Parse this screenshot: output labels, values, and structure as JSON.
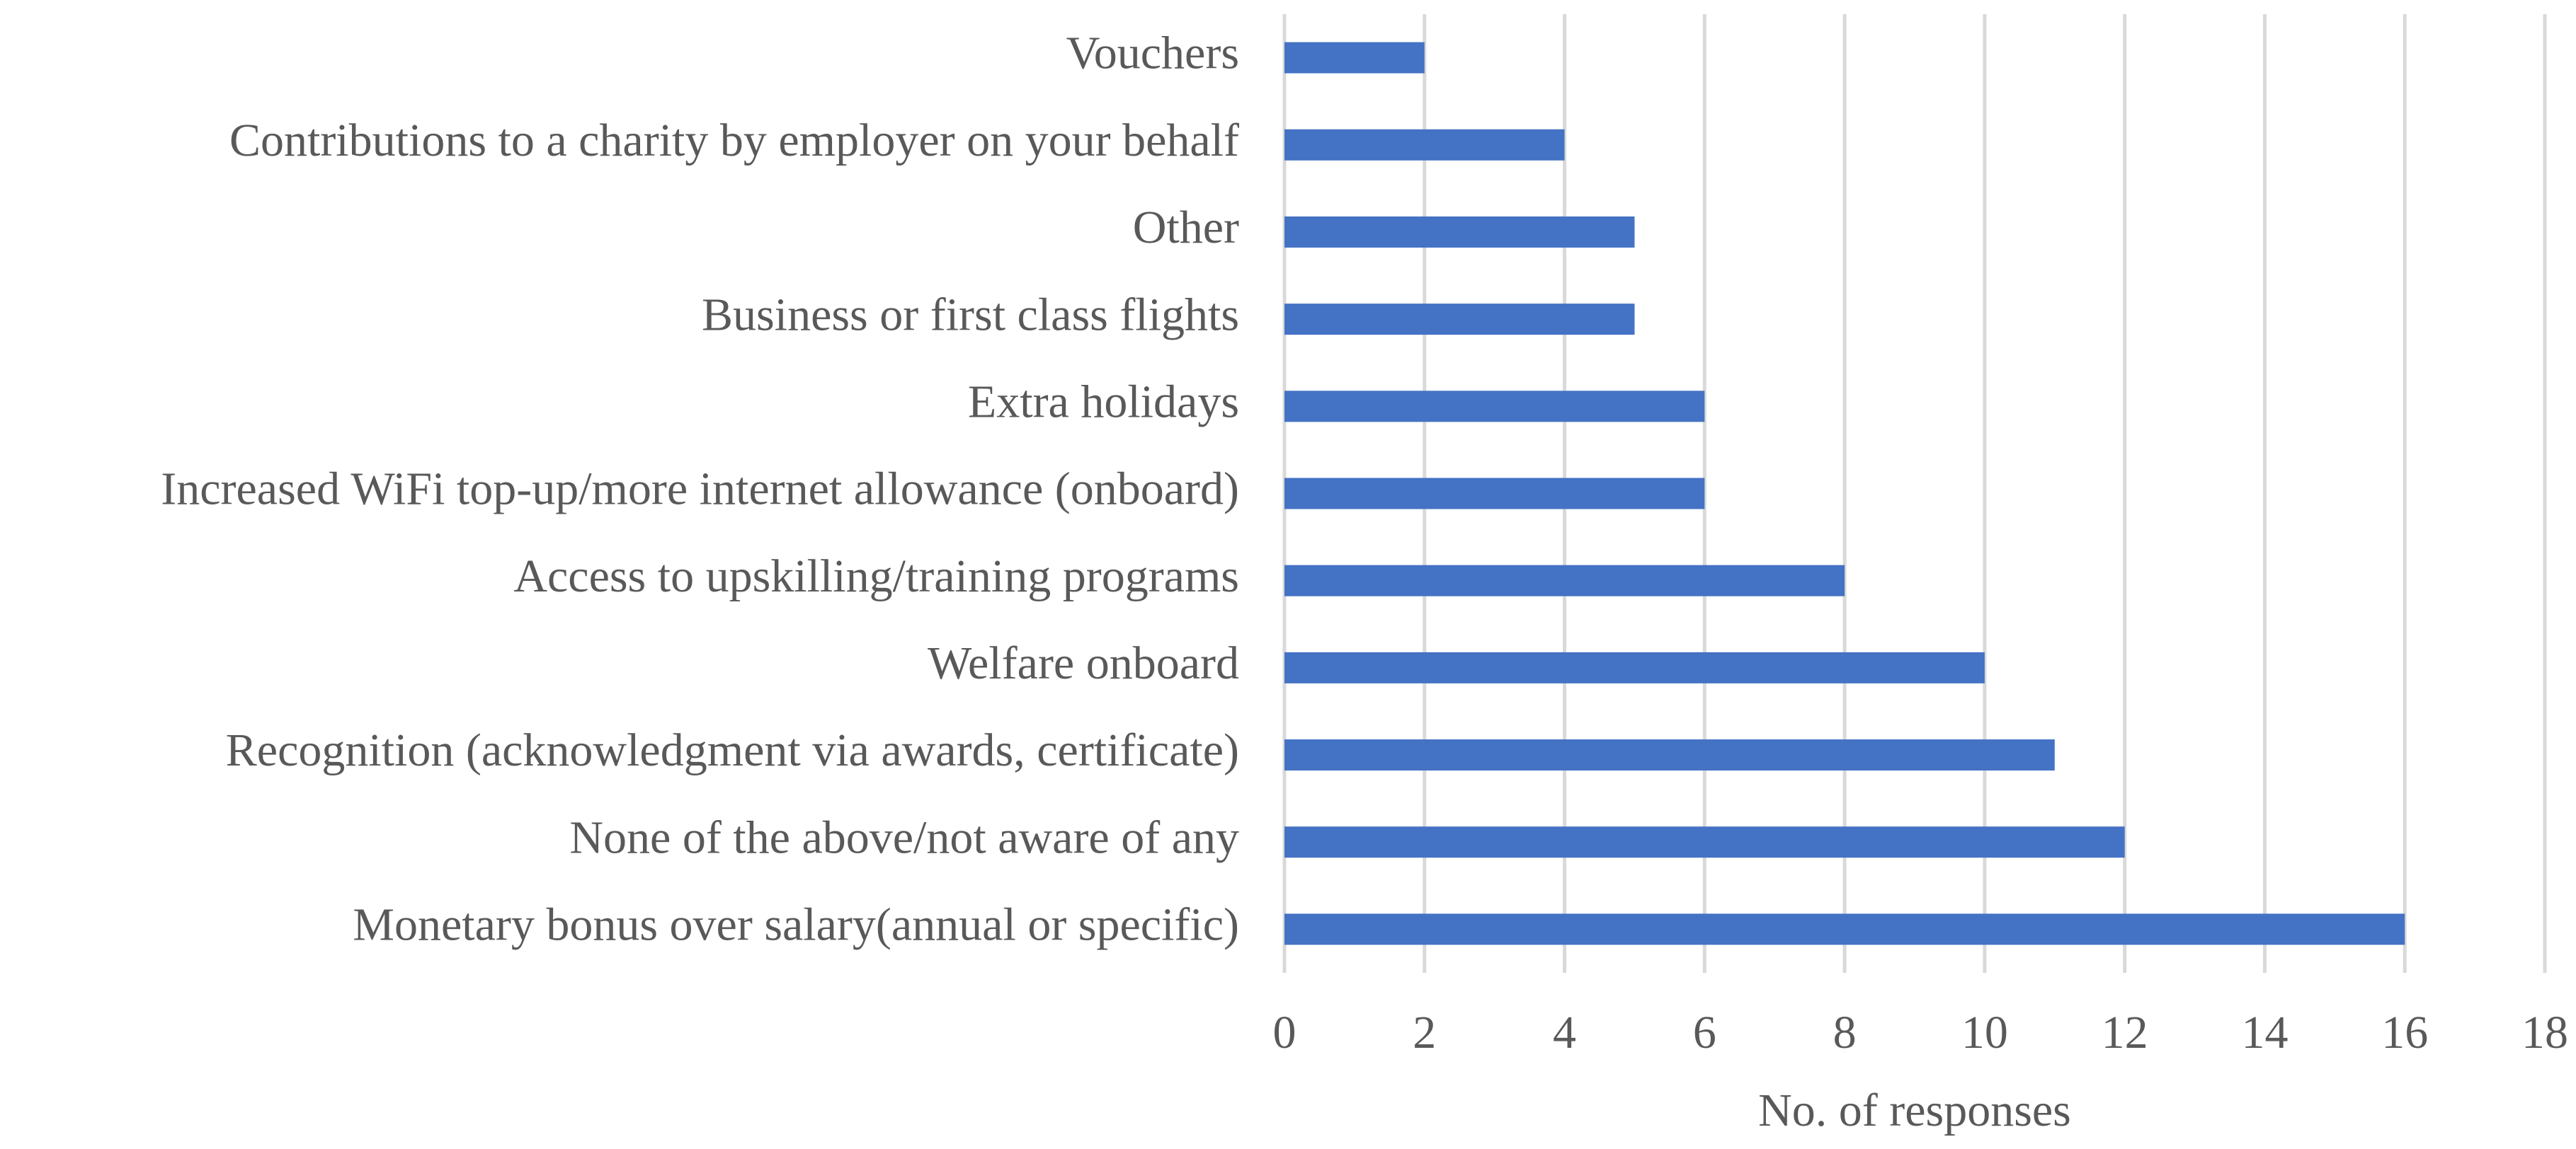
{
  "chart_data": {
    "type": "hbar",
    "categories": [
      "Vouchers",
      "Contributions to a charity by employer on your behalf",
      "Other",
      "Business or first class flights",
      "Extra holidays",
      "Increased WiFi top-up/more internet allowance (onboard)",
      "Access to upskilling/training programs",
      "Welfare onboard",
      "Recognition (acknowledgment via awards, certificate)",
      "None of the above/not aware of any",
      "Monetary bonus over salary(annual or specific)"
    ],
    "values": [
      2,
      4,
      5,
      5,
      6,
      6,
      8,
      10,
      11,
      12,
      16
    ],
    "color": "#4472c4",
    "x_label": "No. of responses",
    "xlim": [
      0,
      18
    ],
    "xticks": [
      0,
      2,
      4,
      6,
      8,
      10,
      12,
      14,
      16,
      18
    ],
    "grid": true
  }
}
